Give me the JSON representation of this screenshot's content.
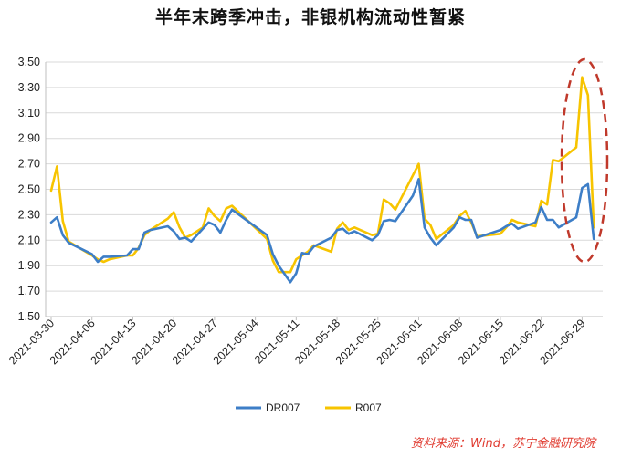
{
  "title": "半年末跨季冲击，非银机构流动性暂紧",
  "source": "资料来源：Wind，苏宁金融研究院",
  "chart_data": {
    "type": "line",
    "ylim": [
      1.5,
      3.5
    ],
    "yticks": [
      "1.50",
      "1.70",
      "1.90",
      "2.10",
      "2.30",
      "2.50",
      "2.70",
      "2.90",
      "3.10",
      "3.30",
      "3.50"
    ],
    "xtick_labels": [
      "2021-03-30",
      "2021-04-06",
      "2021-04-13",
      "2021-04-20",
      "2021-04-27",
      "2021-05-04",
      "2021-05-11",
      "2021-05-18",
      "2021-05-25",
      "2021-06-01",
      "2021-06-08",
      "2021-06-15",
      "2021-06-22",
      "2021-06-29"
    ],
    "x": [
      "2021-03-30",
      "2021-03-31",
      "2021-04-01",
      "2021-04-02",
      "2021-04-06",
      "2021-04-07",
      "2021-04-08",
      "2021-04-09",
      "2021-04-12",
      "2021-04-13",
      "2021-04-14",
      "2021-04-15",
      "2021-04-16",
      "2021-04-19",
      "2021-04-20",
      "2021-04-21",
      "2021-04-22",
      "2021-04-23",
      "2021-04-25",
      "2021-04-26",
      "2021-04-27",
      "2021-04-28",
      "2021-04-29",
      "2021-04-30",
      "2021-05-06",
      "2021-05-07",
      "2021-05-08",
      "2021-05-10",
      "2021-05-11",
      "2021-05-12",
      "2021-05-13",
      "2021-05-14",
      "2021-05-17",
      "2021-05-18",
      "2021-05-19",
      "2021-05-20",
      "2021-05-21",
      "2021-05-24",
      "2021-05-25",
      "2021-05-26",
      "2021-05-27",
      "2021-05-28",
      "2021-05-31",
      "2021-06-01",
      "2021-06-02",
      "2021-06-03",
      "2021-06-04",
      "2021-06-07",
      "2021-06-08",
      "2021-06-09",
      "2021-06-10",
      "2021-06-11",
      "2021-06-15",
      "2021-06-16",
      "2021-06-17",
      "2021-06-18",
      "2021-06-21",
      "2021-06-22",
      "2021-06-23",
      "2021-06-24",
      "2021-06-25",
      "2021-06-28",
      "2021-06-29",
      "2021-06-30",
      "2021-07-01"
    ],
    "series": [
      {
        "name": "DR007",
        "color": "#3d7ec7",
        "values": [
          2.24,
          2.28,
          2.14,
          2.08,
          1.99,
          1.93,
          1.97,
          1.97,
          1.98,
          2.03,
          2.03,
          2.16,
          2.18,
          2.21,
          2.17,
          2.11,
          2.12,
          2.09,
          2.19,
          2.24,
          2.22,
          2.16,
          2.26,
          2.34,
          2.14,
          1.99,
          1.9,
          1.77,
          1.84,
          2.0,
          1.99,
          2.05,
          2.12,
          2.18,
          2.19,
          2.15,
          2.17,
          2.1,
          2.14,
          2.25,
          2.26,
          2.25,
          2.45,
          2.58,
          2.2,
          2.12,
          2.06,
          2.2,
          2.28,
          2.26,
          2.26,
          2.12,
          2.18,
          2.21,
          2.23,
          2.19,
          2.24,
          2.36,
          2.26,
          2.26,
          2.2,
          2.28,
          2.51,
          2.54,
          2.11
        ]
      },
      {
        "name": "R007",
        "color": "#f7c400",
        "values": [
          2.49,
          2.68,
          2.25,
          2.09,
          1.98,
          1.95,
          1.93,
          1.95,
          1.98,
          1.98,
          2.04,
          2.14,
          2.18,
          2.27,
          2.32,
          2.2,
          2.12,
          2.14,
          2.2,
          2.35,
          2.29,
          2.25,
          2.35,
          2.37,
          2.11,
          1.94,
          1.85,
          1.85,
          1.95,
          1.98,
          2.01,
          2.06,
          2.01,
          2.19,
          2.24,
          2.18,
          2.2,
          2.14,
          2.15,
          2.42,
          2.39,
          2.34,
          2.61,
          2.7,
          2.27,
          2.22,
          2.11,
          2.22,
          2.29,
          2.33,
          2.24,
          2.13,
          2.15,
          2.2,
          2.26,
          2.24,
          2.21,
          2.41,
          2.38,
          2.73,
          2.72,
          2.83,
          3.38,
          3.24,
          2.2
        ]
      }
    ]
  }
}
